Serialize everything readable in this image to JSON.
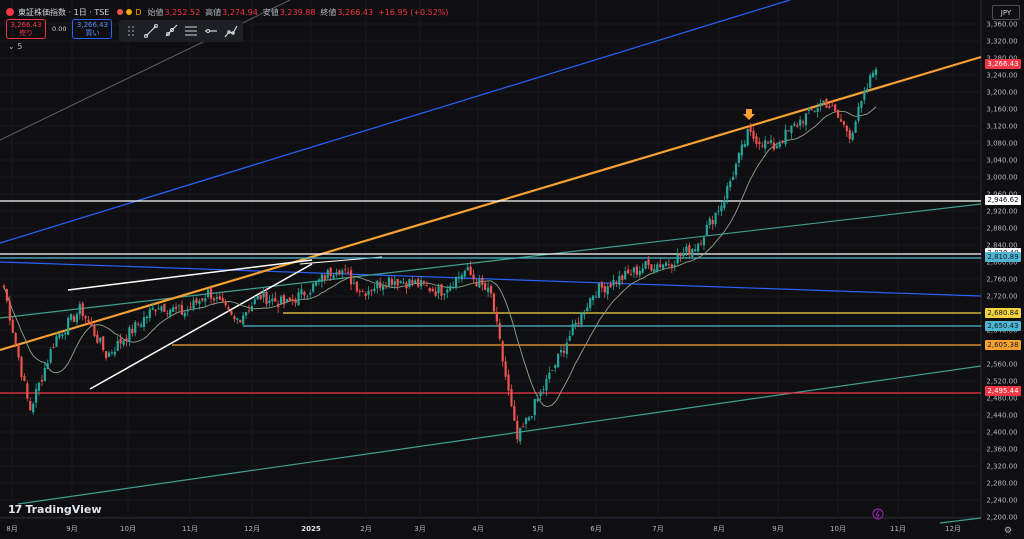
{
  "header": {
    "symbol": "東証株価指数 · 1日 · TSE",
    "delay_badge": "D",
    "open_label": "始値",
    "open": "3,252.52",
    "high_label": "高値",
    "high": "3,274.94",
    "low_label": "安値",
    "low": "3,239.88",
    "close_label": "終値",
    "close": "3,266.43",
    "change": "+16.95 (+0.52%)"
  },
  "trade": {
    "sell_price": "3,266.43",
    "sell_label": "売り",
    "spread": "0.00",
    "buy_price": "3,266.43",
    "buy_label": "買い"
  },
  "indicators_count": "5",
  "currency": "JPY",
  "toolbar_tools": [
    "grip-icon",
    "trendline-icon",
    "ray-icon",
    "parallel-channel-icon",
    "horizontal-ray-icon",
    "path-icon"
  ],
  "price_axis": {
    "ticks": [
      "3,360.00",
      "3,320.00",
      "3,280.00",
      "3,240.00",
      "3,200.00",
      "3,160.00",
      "3,120.00",
      "3,080.00",
      "3,040.00",
      "3,000.00",
      "2,960.00",
      "2,920.00",
      "2,880.00",
      "2,840.00",
      "2,800.00",
      "2,760.00",
      "2,720.00",
      "2,680.00",
      "2,640.00",
      "2,600.00",
      "2,560.00",
      "2,520.00",
      "2,480.00",
      "2,440.00",
      "2,400.00",
      "2,360.00",
      "2,320.00",
      "2,280.00",
      "2,240.00",
      "2,200.00"
    ]
  },
  "price_labels": [
    {
      "text": "3,266.43",
      "bg": "#f23645",
      "fg": "#ffffff",
      "value": 3266.43
    },
    {
      "text": "2,946.62",
      "bg": "#ffffff",
      "fg": "#131722",
      "value": 2946.62
    },
    {
      "text": "2,820.40",
      "bg": "#ffffff",
      "fg": "#131722",
      "value": 2820.4
    },
    {
      "text": "2,810.89",
      "bg": "#4fb6d1",
      "fg": "#131722",
      "value": 2810.89
    },
    {
      "text": "2,680.84",
      "bg": "#f5d33f",
      "fg": "#131722",
      "value": 2680.84
    },
    {
      "text": "2,650.43",
      "bg": "#4fb6d1",
      "fg": "#131722",
      "value": 2650.43
    },
    {
      "text": "2,605.38",
      "bg": "#f7a133",
      "fg": "#131722",
      "value": 2605.38
    },
    {
      "text": "2,495.44",
      "bg": "#f23645",
      "fg": "#ffffff",
      "value": 2495.44
    }
  ],
  "time_axis": {
    "labels": [
      "8月",
      "9月",
      "10月",
      "11月",
      "12月",
      "2025",
      "2月",
      "3月",
      "4月",
      "5月",
      "6月",
      "7月",
      "8月",
      "9月",
      "10月",
      "11月",
      "12月"
    ]
  },
  "brand": "TradingView",
  "colors": {
    "up": "#26a69a",
    "down": "#ef5350",
    "orange_trend": "#f7a133",
    "blue_trend": "#2962ff",
    "green_trend": "#3f9f8f"
  },
  "chart_data": {
    "type": "line",
    "ylim": [
      2200,
      3380
    ],
    "close_path": [
      {
        "x": "8月",
        "y": 2740
      },
      {
        "x": "8月",
        "y": 2450
      },
      {
        "x": "8月",
        "y": 2620
      },
      {
        "x": "9月",
        "y": 2690
      },
      {
        "x": "9月",
        "y": 2580
      },
      {
        "x": "9月",
        "y": 2640
      },
      {
        "x": "10月",
        "y": 2700
      },
      {
        "x": "10月",
        "y": 2680
      },
      {
        "x": "10月",
        "y": 2730
      },
      {
        "x": "11月",
        "y": 2660
      },
      {
        "x": "11月",
        "y": 2720
      },
      {
        "x": "12月",
        "y": 2700
      },
      {
        "x": "12月",
        "y": 2740
      },
      {
        "x": "2025",
        "y": 2790
      },
      {
        "x": "2025",
        "y": 2730
      },
      {
        "x": "2月",
        "y": 2760
      },
      {
        "x": "2月",
        "y": 2750
      },
      {
        "x": "3月",
        "y": 2730
      },
      {
        "x": "3月",
        "y": 2780
      },
      {
        "x": "4月",
        "y": 2720
      },
      {
        "x": "4月",
        "y": 2380
      },
      {
        "x": "4月",
        "y": 2500
      },
      {
        "x": "5月",
        "y": 2620
      },
      {
        "x": "5月",
        "y": 2730
      },
      {
        "x": "6月",
        "y": 2760
      },
      {
        "x": "6月",
        "y": 2790
      },
      {
        "x": "7月",
        "y": 2800
      },
      {
        "x": "7月",
        "y": 2840
      },
      {
        "x": "8月",
        "y": 2940
      },
      {
        "x": "8月",
        "y": 3100
      },
      {
        "x": "9月",
        "y": 3070
      },
      {
        "x": "9月",
        "y": 3130
      },
      {
        "x": "10月",
        "y": 3180
      },
      {
        "x": "10月",
        "y": 3100
      },
      {
        "x": "10月",
        "y": 3266
      }
    ]
  }
}
